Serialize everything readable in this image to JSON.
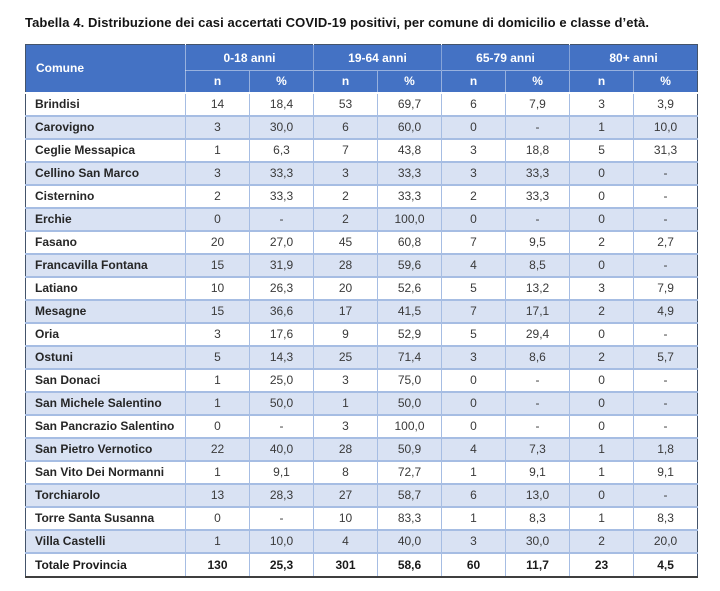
{
  "title": "Tabella 4. Distribuzione dei casi accertati COVID-19 positivi, per comune di domicilio e classe d’età.",
  "table": {
    "comune_header": "Comune",
    "age_groups": [
      "0-18 anni",
      "19-64 anni",
      "65-79 anni",
      "80+ anni"
    ],
    "sub_headers": [
      "n",
      "%"
    ],
    "rows": [
      {
        "comune": "Brindisi",
        "values": [
          "14",
          "18,4",
          "53",
          "69,7",
          "6",
          "7,9",
          "3",
          "3,9"
        ]
      },
      {
        "comune": "Carovigno",
        "values": [
          "3",
          "30,0",
          "6",
          "60,0",
          "0",
          "-",
          "1",
          "10,0"
        ]
      },
      {
        "comune": "Ceglie Messapica",
        "values": [
          "1",
          "6,3",
          "7",
          "43,8",
          "3",
          "18,8",
          "5",
          "31,3"
        ]
      },
      {
        "comune": "Cellino San Marco",
        "values": [
          "3",
          "33,3",
          "3",
          "33,3",
          "3",
          "33,3",
          "0",
          "-"
        ]
      },
      {
        "comune": "Cisternino",
        "values": [
          "2",
          "33,3",
          "2",
          "33,3",
          "2",
          "33,3",
          "0",
          "-"
        ]
      },
      {
        "comune": "Erchie",
        "values": [
          "0",
          "-",
          "2",
          "100,0",
          "0",
          "-",
          "0",
          "-"
        ]
      },
      {
        "comune": "Fasano",
        "values": [
          "20",
          "27,0",
          "45",
          "60,8",
          "7",
          "9,5",
          "2",
          "2,7"
        ]
      },
      {
        "comune": "Francavilla Fontana",
        "values": [
          "15",
          "31,9",
          "28",
          "59,6",
          "4",
          "8,5",
          "0",
          "-"
        ]
      },
      {
        "comune": "Latiano",
        "values": [
          "10",
          "26,3",
          "20",
          "52,6",
          "5",
          "13,2",
          "3",
          "7,9"
        ]
      },
      {
        "comune": "Mesagne",
        "values": [
          "15",
          "36,6",
          "17",
          "41,5",
          "7",
          "17,1",
          "2",
          "4,9"
        ]
      },
      {
        "comune": "Oria",
        "values": [
          "3",
          "17,6",
          "9",
          "52,9",
          "5",
          "29,4",
          "0",
          "-"
        ]
      },
      {
        "comune": "Ostuni",
        "values": [
          "5",
          "14,3",
          "25",
          "71,4",
          "3",
          "8,6",
          "2",
          "5,7"
        ]
      },
      {
        "comune": "San Donaci",
        "values": [
          "1",
          "25,0",
          "3",
          "75,0",
          "0",
          "-",
          "0",
          "-"
        ]
      },
      {
        "comune": "San Michele Salentino",
        "values": [
          "1",
          "50,0",
          "1",
          "50,0",
          "0",
          "-",
          "0",
          "-"
        ]
      },
      {
        "comune": "San Pancrazio Salentino",
        "values": [
          "0",
          "-",
          "3",
          "100,0",
          "0",
          "-",
          "0",
          "-"
        ]
      },
      {
        "comune": "San Pietro Vernotico",
        "values": [
          "22",
          "40,0",
          "28",
          "50,9",
          "4",
          "7,3",
          "1",
          "1,8"
        ]
      },
      {
        "comune": "San Vito Dei Normanni",
        "values": [
          "1",
          "9,1",
          "8",
          "72,7",
          "1",
          "9,1",
          "1",
          "9,1"
        ]
      },
      {
        "comune": "Torchiarolo",
        "values": [
          "13",
          "28,3",
          "27",
          "58,7",
          "6",
          "13,0",
          "0",
          "-"
        ]
      },
      {
        "comune": "Torre Santa Susanna",
        "values": [
          "0",
          "-",
          "10",
          "83,3",
          "1",
          "8,3",
          "1",
          "8,3"
        ]
      },
      {
        "comune": "Villa Castelli",
        "values": [
          "1",
          "10,0",
          "4",
          "40,0",
          "3",
          "30,0",
          "2",
          "20,0"
        ]
      }
    ],
    "total_row": {
      "comune": "Totale Provincia",
      "values": [
        "130",
        "25,3",
        "301",
        "58,6",
        "60",
        "11,7",
        "23",
        "4,5"
      ]
    }
  },
  "colors": {
    "header_bg": "#4472C4",
    "header_text": "#FFFFFF",
    "stripe_bg": "#D9E2F3",
    "row_bg": "#FFFFFF",
    "grid_border": "#A6BDE3",
    "outer_border": "#44546A",
    "total_border": "#3F3F3F",
    "comune_text": "#262626",
    "value_text": "#3A3A3A",
    "title_text": "#141414"
  }
}
